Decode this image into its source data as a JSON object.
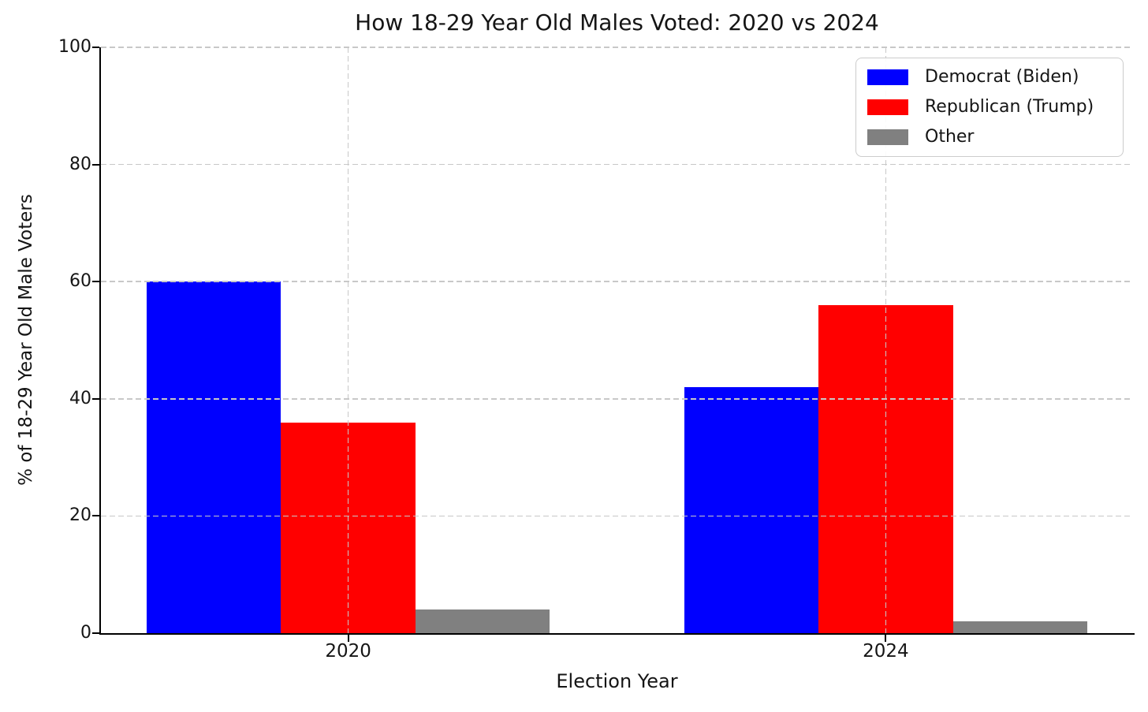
{
  "chart_data": {
    "type": "bar",
    "title": "How 18-29 Year Old Males Voted: 2020 vs 2024",
    "xlabel": "Election Year",
    "ylabel": "% of 18-29 Year Old Male Voters",
    "categories": [
      "2020",
      "2024"
    ],
    "series": [
      {
        "name": "Democrat (Biden)",
        "color": "#0000ff",
        "values": [
          60,
          42
        ]
      },
      {
        "name": "Republican (Trump)",
        "color": "#ff0000",
        "values": [
          36,
          56
        ]
      },
      {
        "name": "Other",
        "color": "#808080",
        "values": [
          4,
          2
        ]
      }
    ],
    "ylim": [
      0,
      100
    ],
    "yticks": [
      0,
      20,
      40,
      60,
      80,
      100
    ],
    "xlim": [
      -0.46,
      1.46
    ],
    "bar_width": 0.25,
    "grid": "dashed",
    "grid_over_bars": true,
    "legend_position": "upper right"
  },
  "colors": {
    "grid": "#c8c8c8",
    "spine": "#000000",
    "text": "#151515",
    "legend_border": "#cccccc",
    "background": "#ffffff"
  }
}
